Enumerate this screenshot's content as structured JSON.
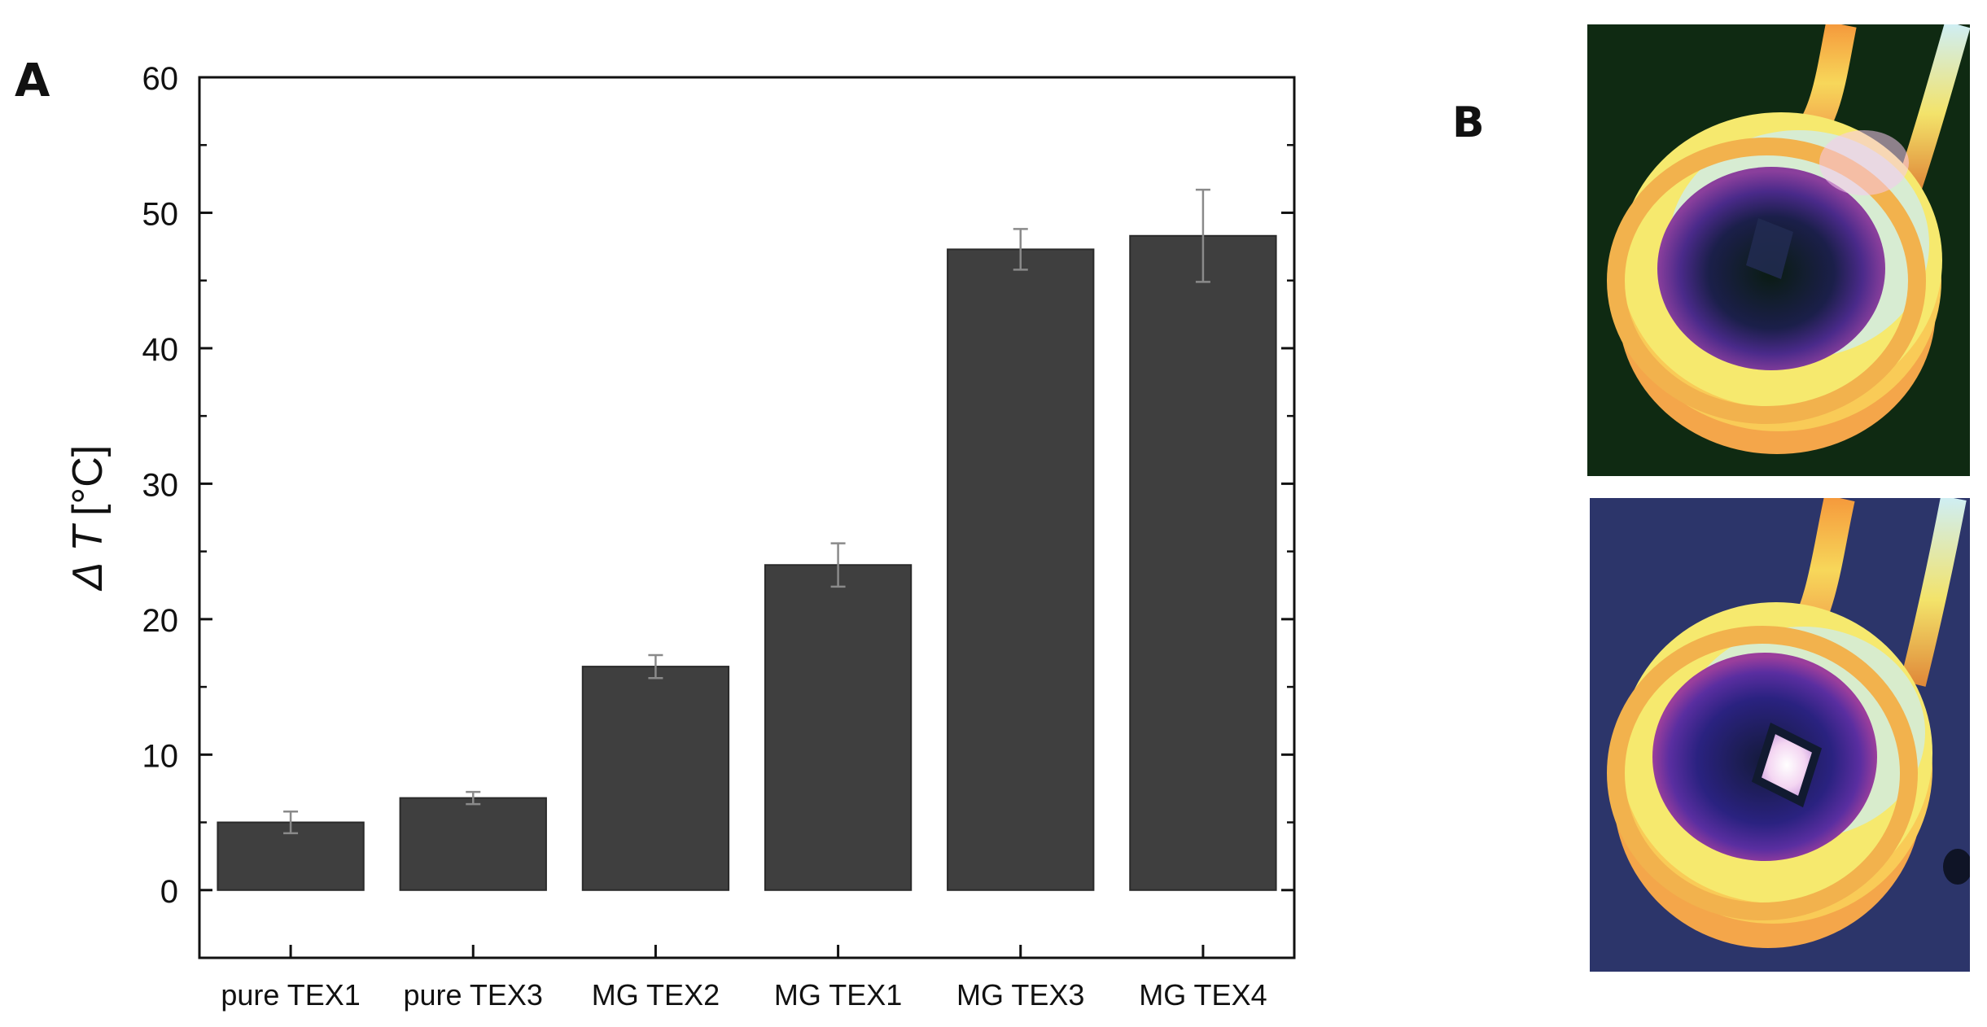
{
  "panels": {
    "a_label": "A",
    "b_label": "B"
  },
  "chart_data": {
    "type": "bar",
    "categories": [
      "pure TEX1",
      "pure TEX3",
      "MG TEX2",
      "MG TEX1",
      "MG TEX3",
      "MG TEX4"
    ],
    "values": [
      5.0,
      6.8,
      16.5,
      24.0,
      47.3,
      48.3
    ],
    "errors": [
      0.8,
      0.45,
      0.85,
      1.6,
      1.5,
      3.4
    ],
    "ylabel_symbol": "Δ T",
    "ylabel_unit": "[°C]",
    "ylim": [
      -5,
      60
    ],
    "yticks": [
      0,
      10,
      20,
      30,
      40,
      50,
      60
    ],
    "grid": false,
    "bar_color": "#3f3f3f",
    "error_bar_color": "#8a8a8a"
  },
  "images": {
    "thermal_top": {
      "name": "thermal-image-empty-coil",
      "background": "#0f2a12"
    },
    "thermal_bottom": {
      "name": "thermal-image-heated-sample",
      "background": "#2c356a"
    }
  }
}
